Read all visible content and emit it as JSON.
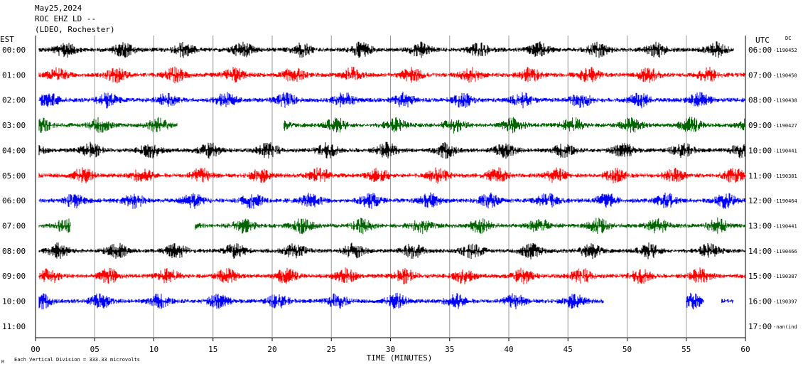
{
  "header": {
    "date": "May25,2024",
    "station": "ROC EHZ LD --",
    "network": "(LDEO, Rochester)"
  },
  "chart_data": {
    "type": "line",
    "title": "May25,2024",
    "left_axis_label": "EST",
    "right_axis_label": "UTC",
    "right_axis_note": "DC",
    "xlabel": "TIME (MINUTES)",
    "xlim": [
      0,
      60
    ],
    "x_ticks": [
      "00",
      "05",
      "10",
      "15",
      "20",
      "25",
      "30",
      "35",
      "40",
      "45",
      "50",
      "55",
      "60"
    ],
    "scale_note": "Each Vertical Division = 333.33 microvolts",
    "corner_mark": "M",
    "trace_colors": [
      "#000000",
      "#ff0000",
      "#0000ff",
      "#006400"
    ],
    "rows": [
      {
        "est": "00:00",
        "utc": "06:00",
        "dc": "-1190452",
        "start": 0.3,
        "end": 59.0
      },
      {
        "est": "01:00",
        "utc": "07:00",
        "dc": "-1190450",
        "start": 0.3,
        "end": 60
      },
      {
        "est": "02:00",
        "utc": "08:00",
        "dc": "-1190438",
        "start": 0.3,
        "end": 60
      },
      {
        "est": "03:00",
        "utc": "09:00",
        "dc": "-1190427",
        "start": 0.3,
        "end": 60,
        "gap": [
          12,
          21
        ]
      },
      {
        "est": "04:00",
        "utc": "10:00",
        "dc": "-1190441",
        "start": 0.3,
        "end": 60
      },
      {
        "est": "05:00",
        "utc": "11:00",
        "dc": "-1190381",
        "start": 0.3,
        "end": 60
      },
      {
        "est": "06:00",
        "utc": "12:00",
        "dc": "-1190464",
        "start": 0.3,
        "end": 60
      },
      {
        "est": "07:00",
        "utc": "13:00",
        "dc": "-1190441",
        "start": 0.3,
        "end": 60,
        "gap": [
          3,
          13.5
        ]
      },
      {
        "est": "08:00",
        "utc": "14:00",
        "dc": "-1190466",
        "start": 0.3,
        "end": 60
      },
      {
        "est": "09:00",
        "utc": "15:00",
        "dc": "-1190387",
        "start": 0.3,
        "end": 60
      },
      {
        "est": "10:00",
        "utc": "16:00",
        "dc": "-1190397",
        "start": 0.3,
        "end": 48,
        "extra": [
          55,
          56.5
        ],
        "extra2": [
          58,
          59
        ]
      },
      {
        "est": "11:00",
        "utc": "17:00",
        "dc": "-nan(ind",
        "start": null,
        "end": null
      }
    ]
  }
}
